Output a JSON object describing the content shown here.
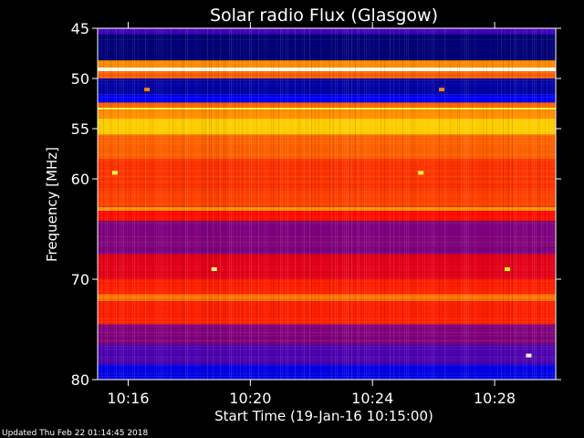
{
  "chart_data": {
    "type": "heatmap",
    "title": "Solar radio Flux (Glasgow)",
    "xlabel": "Start Time (19-Jan-16 10:15:00)",
    "ylabel": "Frequency [MHz]",
    "x_unit": "time (HH:MM)",
    "y_unit": "MHz",
    "xlim": [
      "10:15",
      "10:30"
    ],
    "ylim": [
      45,
      80
    ],
    "y_scale": "linear, inverted (45 at top, 80 at bottom)",
    "x_ticks": [
      "10:16",
      "10:20",
      "10:24",
      "10:28"
    ],
    "y_ticks": [
      45,
      50,
      55,
      60,
      70,
      80
    ],
    "colormap": [
      "#000020",
      "#0000ff",
      "#ff0000",
      "#ff8000",
      "#ffff00",
      "#ffffff"
    ],
    "frequency_bands": [
      {
        "from": 45.0,
        "to": 45.6,
        "level": 0.25
      },
      {
        "from": 45.6,
        "to": 48.2,
        "level": 0.08
      },
      {
        "from": 48.2,
        "to": 48.9,
        "level": 0.62
      },
      {
        "from": 48.9,
        "to": 49.3,
        "level": 0.98
      },
      {
        "from": 49.3,
        "to": 50.0,
        "level": 0.55
      },
      {
        "from": 50.0,
        "to": 51.6,
        "level": 0.12
      },
      {
        "from": 51.6,
        "to": 52.4,
        "level": 0.2
      },
      {
        "from": 52.4,
        "to": 52.9,
        "level": 0.55
      },
      {
        "from": 52.9,
        "to": 53.1,
        "level": 0.85
      },
      {
        "from": 53.1,
        "to": 54.0,
        "level": 0.62
      },
      {
        "from": 54.0,
        "to": 55.6,
        "level": 0.72
      },
      {
        "from": 55.6,
        "to": 58.0,
        "level": 0.55
      },
      {
        "from": 58.0,
        "to": 61.0,
        "level": 0.48
      },
      {
        "from": 61.0,
        "to": 62.8,
        "level": 0.5
      },
      {
        "from": 62.8,
        "to": 63.2,
        "level": 0.62
      },
      {
        "from": 63.2,
        "to": 64.2,
        "level": 0.42
      },
      {
        "from": 64.2,
        "to": 67.5,
        "level": 0.3
      },
      {
        "from": 67.5,
        "to": 70.0,
        "level": 0.38
      },
      {
        "from": 70.0,
        "to": 71.5,
        "level": 0.45
      },
      {
        "from": 71.5,
        "to": 72.2,
        "level": 0.58
      },
      {
        "from": 72.2,
        "to": 74.5,
        "level": 0.45
      },
      {
        "from": 74.5,
        "to": 76.5,
        "level": 0.3
      },
      {
        "from": 76.5,
        "to": 78.5,
        "level": 0.26
      },
      {
        "from": 78.5,
        "to": 80.0,
        "level": 0.18
      }
    ],
    "bursts": [
      {
        "time": "10:15:34",
        "freq": 59.4,
        "level": 0.85
      },
      {
        "time": "10:25:35",
        "freq": 59.4,
        "level": 0.85
      },
      {
        "time": "10:16:37",
        "freq": 51.1,
        "level": 0.6
      },
      {
        "time": "10:26:16",
        "freq": 51.1,
        "level": 0.6
      },
      {
        "time": "10:18:49",
        "freq": 69.0,
        "level": 0.9
      },
      {
        "time": "10:29:07",
        "freq": 77.6,
        "level": 1.0
      },
      {
        "time": "10:28:25",
        "freq": 69.0,
        "level": 0.8
      }
    ]
  },
  "footer": {
    "updated": "Updated Thu Feb 22 01:14:45 2018"
  }
}
